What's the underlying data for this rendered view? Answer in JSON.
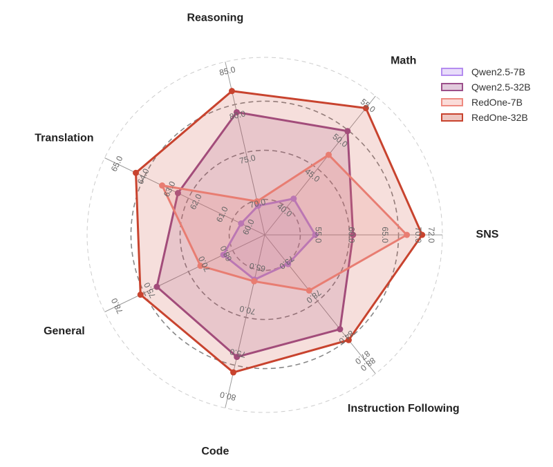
{
  "chart_data": {
    "type": "radar",
    "axes": [
      {
        "name": "SNS",
        "range": [
          47.0,
          72.5
        ],
        "ticks": [
          "55.0",
          "60.0",
          "65.0",
          "70.0",
          "72.0"
        ]
      },
      {
        "name": "Math",
        "range": [
          36.5,
          55.5
        ],
        "ticks": [
          "40.0",
          "45.0",
          "50.0",
          "55.0"
        ]
      },
      {
        "name": "Reasoning",
        "range": [
          66.5,
          85.2
        ],
        "ticks": [
          "70.0",
          "75.0",
          "80.0",
          "85.0"
        ]
      },
      {
        "name": "Translation",
        "range": [
          59.4,
          65.2
        ],
        "ticks": [
          "60.0",
          "61.0",
          "62.0",
          "63.0",
          "64.0",
          "65.0"
        ]
      },
      {
        "name": "General",
        "range": [
          64.5,
          78.5
        ],
        "ticks": [
          "68.0",
          "70.0",
          "75.0",
          "78.0"
        ]
      },
      {
        "name": "Code",
        "range": [
          61.3,
          80.5
        ],
        "ticks": [
          "65.0",
          "70.0",
          "75.0",
          "80.0"
        ]
      },
      {
        "name": "Instruction Following",
        "range": [
          69.0,
          88.5
        ],
        "ticks": [
          "73.0",
          "78.0",
          "84.0",
          "87.0",
          "88.0"
        ]
      }
    ],
    "series": [
      {
        "name": "Qwen2.5-7B",
        "color": "#b48cf0",
        "values": [
          54.6,
          41.7,
          69.8,
          60.3,
          68.3,
          66.5,
          73.3
        ]
      },
      {
        "name": "Qwen2.5-32B",
        "color": "#9b4f8a",
        "values": [
          60.3,
          51.4,
          80.4,
          62.7,
          74.4,
          75.5,
          82.9
        ]
      },
      {
        "name": "RedOne-7B",
        "color": "#ee8a80",
        "values": [
          68.4,
          48.0,
          70.3,
          63.3,
          70.4,
          66.7,
          77.2
        ]
      },
      {
        "name": "RedOne-32B",
        "color": "#c8432e",
        "values": [
          70.7,
          54.7,
          82.8,
          64.3,
          75.9,
          77.3,
          84.5
        ]
      }
    ],
    "legend_position": "top-right",
    "grid": true
  }
}
